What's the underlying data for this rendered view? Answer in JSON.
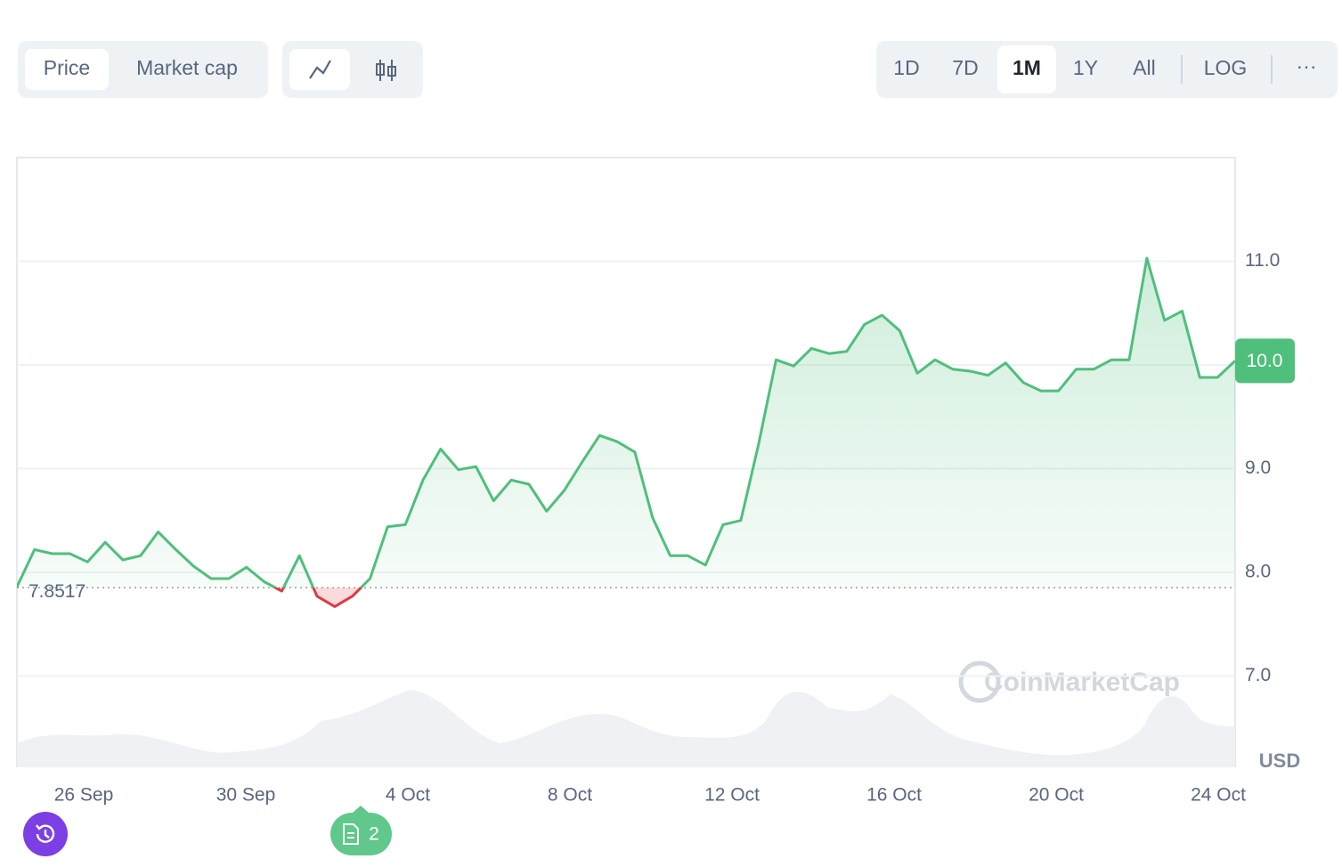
{
  "ui": {
    "tabs": [
      "Price",
      "Market cap"
    ],
    "ranges": [
      "1D",
      "7D",
      "1M",
      "1Y",
      "All"
    ],
    "log": "LOG",
    "more": "···",
    "news_count": "2",
    "watermark": "CoinMarketCap",
    "currency": "USD"
  },
  "chart_data": {
    "type": "line",
    "series": [
      {
        "color": "#4fbf7c",
        "below_color": "#e2383f",
        "values": [
          7.86,
          8.22,
          8.18,
          8.18,
          8.1,
          8.29,
          8.12,
          8.16,
          8.39,
          8.22,
          8.06,
          7.94,
          7.94,
          8.05,
          7.91,
          7.82,
          8.16,
          7.77,
          7.67,
          7.77,
          7.94,
          8.44,
          8.46,
          8.89,
          9.19,
          8.99,
          9.02,
          8.69,
          8.89,
          8.85,
          8.59,
          8.79,
          9.06,
          9.32,
          9.26,
          9.16,
          8.53,
          8.16,
          8.16,
          8.07,
          8.46,
          8.5,
          9.23,
          10.05,
          9.99,
          10.16,
          10.11,
          10.13,
          10.39,
          10.48,
          10.33,
          9.92,
          10.05,
          9.96,
          9.94,
          9.9,
          10.02,
          9.83,
          9.75,
          9.75,
          9.96,
          9.96,
          10.05,
          10.05,
          11.03,
          10.43,
          10.52,
          9.88,
          9.88,
          10.04
        ]
      }
    ],
    "baseline": 7.8517,
    "current_price": {
      "value": 10.04,
      "label": "10.0"
    },
    "xticks": [
      "26 Sep",
      "30 Sep",
      "4 Oct",
      "8 Oct",
      "12 Oct",
      "16 Oct",
      "20 Oct",
      "24 Oct"
    ],
    "ylim": [
      6.12,
      12.0
    ],
    "yticks": [
      {
        "value": 7,
        "label": "7.0"
      },
      {
        "value": 8,
        "label": "8.0"
      },
      {
        "value": 9,
        "label": "9.0"
      },
      {
        "value": 10,
        "label": "10.0"
      },
      {
        "value": 11,
        "label": "11.0"
      }
    ],
    "grid": true
  }
}
